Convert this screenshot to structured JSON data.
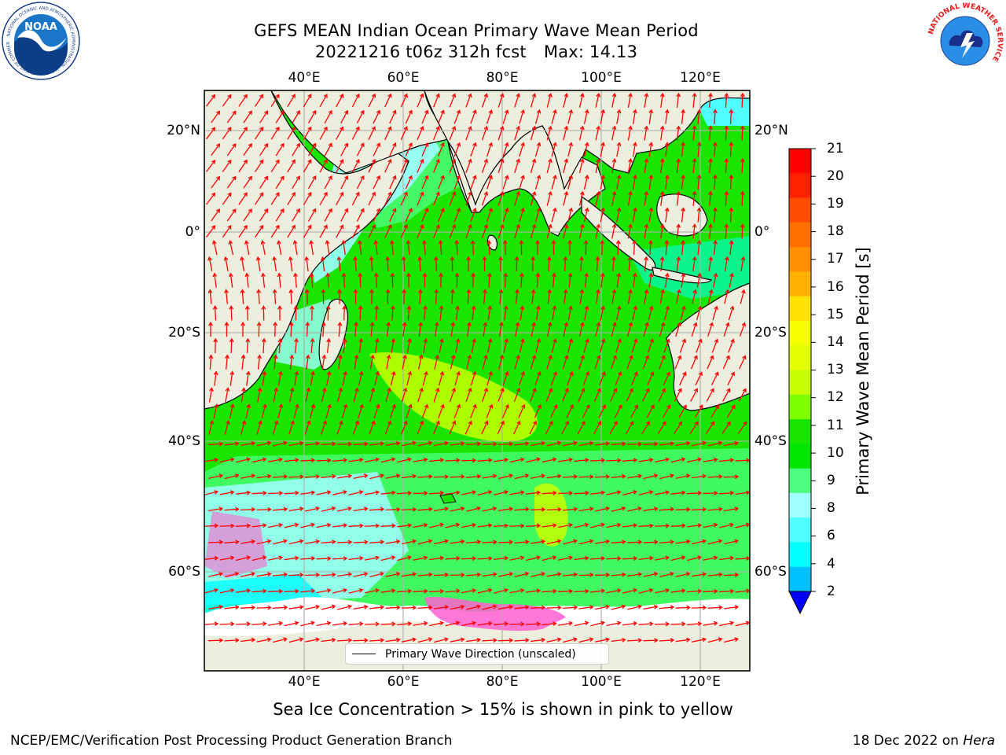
{
  "header": {
    "title_line1": "GEFS MEAN Indian Ocean Primary Wave Mean Period",
    "title_run": "20221216 t06z 312h fcst",
    "title_max": "Max: 14.13"
  },
  "logos": {
    "left": {
      "text": "NOAA",
      "ring_text": "NATIONAL OCEANIC AND ATMOSPHERIC ADMINISTRATION · U.S. DEPARTMENT OF COMMERCE"
    },
    "right": {
      "ring_text": "NATIONAL WEATHER SERVICE"
    }
  },
  "map": {
    "lon_ticks": [
      "40°E",
      "60°E",
      "80°E",
      "100°E",
      "120°E"
    ],
    "lat_ticks": [
      "20°N",
      "0°",
      "20°S",
      "40°S",
      "60°S"
    ],
    "legend_label": "Primary Wave Direction (unscaled)"
  },
  "colorbar": {
    "label": "Primary Wave Mean Period [s]",
    "ticks": [
      "21",
      "20",
      "19",
      "18",
      "17",
      "16",
      "15",
      "14",
      "13",
      "12",
      "11",
      "10",
      "9",
      "8",
      "6",
      "4",
      "2"
    ],
    "colors": [
      "#ff0000",
      "#ff2200",
      "#ff4d00",
      "#ff7000",
      "#ff9000",
      "#ffb000",
      "#ffe000",
      "#f5ff00",
      "#e2ff00",
      "#c8ff00",
      "#7dff00",
      "#19e600",
      "#00e600",
      "#4dff80",
      "#a0ffff",
      "#50ffff",
      "#00ffff",
      "#00c0ff",
      "#0000ff"
    ]
  },
  "colors": {
    "land": "#eeeedf",
    "sea_ice_white": "#ffffff",
    "sea_ice_pink": "#ff60d0",
    "arrow": "#ff0000",
    "gridline": "#b0b0b0"
  },
  "caption": "Sea Ice Concentration > 15% is shown in pink to yellow",
  "footer": {
    "left": "NCEP/EMC/Verification Post Processing Product Generation Branch",
    "right_date": "18 Dec 2022 on",
    "right_host": "Hera"
  }
}
